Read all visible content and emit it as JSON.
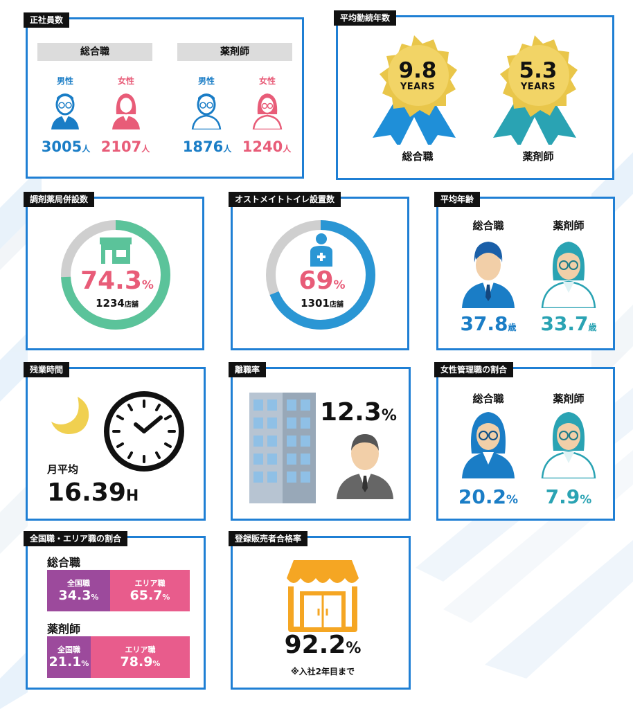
{
  "colors": {
    "border": "#1f7fd4",
    "tag_bg": "#111111",
    "male_blue": "#1a7dc6",
    "female_pink": "#e85c78",
    "teal": "#2aa3b3",
    "gold": "#e9c64a",
    "green": "#5bc39a",
    "purple": "#9c4a9c",
    "bar_pink": "#e85c8c"
  },
  "employees": {
    "tag": "正社員数",
    "groups": [
      {
        "title": "総合職",
        "male_label": "男性",
        "female_label": "女性",
        "male_count": "3005",
        "female_count": "2107"
      },
      {
        "title": "薬剤師",
        "male_label": "男性",
        "female_label": "女性",
        "male_count": "1876",
        "female_count": "1240"
      }
    ],
    "unit": "人"
  },
  "tenure": {
    "tag": "平均勤続年数",
    "items": [
      {
        "value": "9.8",
        "years_label": "YEARS",
        "label": "総合職"
      },
      {
        "value": "5.3",
        "years_label": "YEARS",
        "label": "薬剤師"
      }
    ]
  },
  "pharmacy": {
    "tag": "調剤薬局併設数",
    "percent": "74.3",
    "percent_unit": "%",
    "fraction": 0.743,
    "count": "1234",
    "count_unit": "店舗",
    "icon": "store-icon"
  },
  "ostomy": {
    "tag": "オストメイトトイレ設置数",
    "percent": "69",
    "percent_unit": "%",
    "fraction": 0.69,
    "count": "1301",
    "count_unit": "店舗",
    "icon": "ostomate-icon"
  },
  "age": {
    "tag": "平均年齢",
    "items": [
      {
        "label": "総合職",
        "value": "37.8",
        "unit": "歳"
      },
      {
        "label": "薬剤師",
        "value": "33.7",
        "unit": "歳"
      }
    ]
  },
  "overtime": {
    "tag": "残業時間",
    "label": "月平均",
    "value": "16.39",
    "unit": "H"
  },
  "turnover": {
    "tag": "離職率",
    "value": "12.3",
    "unit": "%"
  },
  "female_managers": {
    "tag": "女性管理職の割合",
    "items": [
      {
        "label": "総合職",
        "value": "20.2",
        "unit": "%"
      },
      {
        "label": "薬剤師",
        "value": "7.9",
        "unit": "%"
      }
    ]
  },
  "area_ratio": {
    "tag": "全国職・エリア職の割合",
    "groups": [
      {
        "title": "総合職",
        "national_label": "全国職",
        "national_value": "34.3",
        "area_label": "エリア職",
        "area_value": "65.7",
        "national_fraction": 0.343
      },
      {
        "title": "薬剤師",
        "national_label": "全国職",
        "national_value": "21.1",
        "area_label": "エリア職",
        "area_value": "78.9",
        "national_fraction": 0.211
      }
    ],
    "unit": "%"
  },
  "registered_seller": {
    "tag": "登録販売者合格率",
    "value": "92.2",
    "unit": "%",
    "note": "※入社2年目まで"
  }
}
